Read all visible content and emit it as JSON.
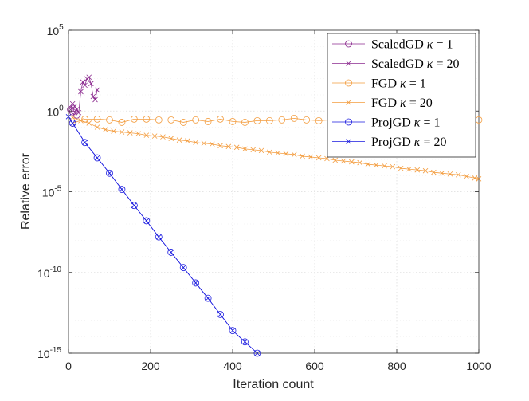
{
  "chart_data": {
    "type": "line",
    "title": "",
    "xlabel": "Iteration count",
    "ylabel": "Relative error",
    "xlim": [
      0,
      1000
    ],
    "ylim_log10": [
      -15,
      5
    ],
    "yscale": "log",
    "grid": true,
    "legend_position": "top-right",
    "x_ticks": [
      "0",
      "200",
      "400",
      "600",
      "800",
      "1000"
    ],
    "y_ticks": [
      {
        "base": "10",
        "exp": "5",
        "log10": 5
      },
      {
        "base": "10",
        "exp": "0",
        "log10": 0
      },
      {
        "base": "10",
        "exp": "-5",
        "log10": -5
      },
      {
        "base": "10",
        "exp": "-10",
        "log10": -10
      },
      {
        "base": "10",
        "exp": "-15",
        "log10": -15
      }
    ],
    "series": [
      {
        "name": "ScaledGD κ = 1",
        "legend_prefix": "ScaledGD ",
        "legend_kappa": "κ",
        "legend_suffix": " = 1",
        "color": "#8b2a8f",
        "marker": "circle",
        "x": [
          5,
          10,
          15,
          20
        ],
        "log10_y": [
          0.1,
          -0.05,
          0.0,
          -0.25
        ]
      },
      {
        "name": "ScaledGD κ = 20",
        "legend_prefix": "ScaledGD ",
        "legend_kappa": "κ",
        "legend_suffix": " = 20",
        "color": "#8b2a8f",
        "marker": "x",
        "x": [
          5,
          10,
          15,
          20,
          25,
          30,
          35,
          40,
          45,
          50,
          55,
          60,
          65,
          70
        ],
        "log10_y": [
          0.2,
          0.45,
          0.3,
          0.1,
          -0.1,
          1.2,
          1.8,
          1.6,
          2.0,
          2.1,
          1.7,
          0.9,
          0.7,
          1.3
        ]
      },
      {
        "name": "FGD κ = 1",
        "legend_prefix": "FGD ",
        "legend_kappa": "κ",
        "legend_suffix": " = 1",
        "color": "#f39c3e",
        "marker": "circle",
        "x": [
          10,
          40,
          70,
          100,
          130,
          160,
          190,
          220,
          250,
          280,
          310,
          340,
          370,
          400,
          430,
          460,
          490,
          520,
          550,
          580,
          610,
          640,
          670,
          700,
          730,
          760,
          790,
          820,
          850,
          880,
          910,
          940,
          970,
          1000
        ],
        "log10_y": [
          -0.75,
          -0.5,
          -0.5,
          -0.55,
          -0.7,
          -0.5,
          -0.5,
          -0.55,
          -0.55,
          -0.7,
          -0.55,
          -0.65,
          -0.5,
          -0.65,
          -0.7,
          -0.6,
          -0.6,
          -0.55,
          -0.45,
          -0.55,
          -0.6,
          -0.55,
          -0.55,
          -0.55,
          -0.55,
          -0.55,
          -0.55,
          -0.55,
          -0.55,
          -0.55,
          -0.55,
          -0.55,
          -0.55,
          -0.55
        ]
      },
      {
        "name": "FGD κ = 20",
        "legend_prefix": "FGD ",
        "legend_kappa": "κ",
        "legend_suffix": " = 20",
        "color": "#f39c3e",
        "marker": "x",
        "x": [
          10,
          30,
          50,
          70,
          90,
          110,
          130,
          150,
          170,
          190,
          210,
          230,
          250,
          270,
          290,
          310,
          330,
          350,
          370,
          390,
          410,
          430,
          450,
          470,
          490,
          510,
          530,
          550,
          570,
          590,
          610,
          630,
          650,
          670,
          690,
          710,
          730,
          750,
          770,
          790,
          810,
          830,
          850,
          870,
          890,
          910,
          930,
          950,
          970,
          990,
          1000
        ],
        "log10_y": [
          -0.4,
          -0.6,
          -0.75,
          -1.0,
          -1.15,
          -1.25,
          -1.3,
          -1.35,
          -1.4,
          -1.5,
          -1.55,
          -1.6,
          -1.7,
          -1.8,
          -1.85,
          -1.95,
          -2.0,
          -2.05,
          -2.15,
          -2.2,
          -2.25,
          -2.35,
          -2.4,
          -2.45,
          -2.55,
          -2.6,
          -2.65,
          -2.7,
          -2.8,
          -2.85,
          -2.9,
          -2.95,
          -3.05,
          -3.1,
          -3.15,
          -3.2,
          -3.3,
          -3.35,
          -3.4,
          -3.45,
          -3.55,
          -3.6,
          -3.65,
          -3.7,
          -3.8,
          -3.85,
          -3.9,
          -3.95,
          -4.05,
          -4.15,
          -4.2
        ]
      },
      {
        "name": "ProjGD κ = 1",
        "legend_prefix": "ProjGD ",
        "legend_kappa": "κ",
        "legend_suffix": " = 1",
        "color": "#1a1adf",
        "marker": "circle",
        "x": [
          10,
          40,
          70,
          100,
          130,
          160,
          190,
          220,
          250,
          280,
          310,
          340,
          370,
          400,
          430,
          460
        ],
        "log10_y": [
          -0.75,
          -1.95,
          -2.9,
          -3.85,
          -4.85,
          -5.85,
          -6.8,
          -7.8,
          -8.75,
          -9.7,
          -10.65,
          -11.6,
          -12.6,
          -13.6,
          -14.3,
          -15.0
        ]
      },
      {
        "name": "ProjGD κ = 20",
        "legend_prefix": "ProjGD ",
        "legend_kappa": "κ",
        "legend_suffix": " = 20",
        "color": "#1a1adf",
        "marker": "x",
        "x": [
          0,
          10,
          40,
          70,
          100,
          130,
          160,
          190,
          220,
          250,
          280,
          310,
          340,
          370,
          400,
          430,
          460
        ],
        "log10_y": [
          -0.35,
          -0.75,
          -1.95,
          -2.9,
          -3.85,
          -4.85,
          -5.85,
          -6.8,
          -7.8,
          -8.75,
          -9.7,
          -10.65,
          -11.6,
          -12.6,
          -13.6,
          -14.3,
          -15.0
        ]
      }
    ]
  }
}
